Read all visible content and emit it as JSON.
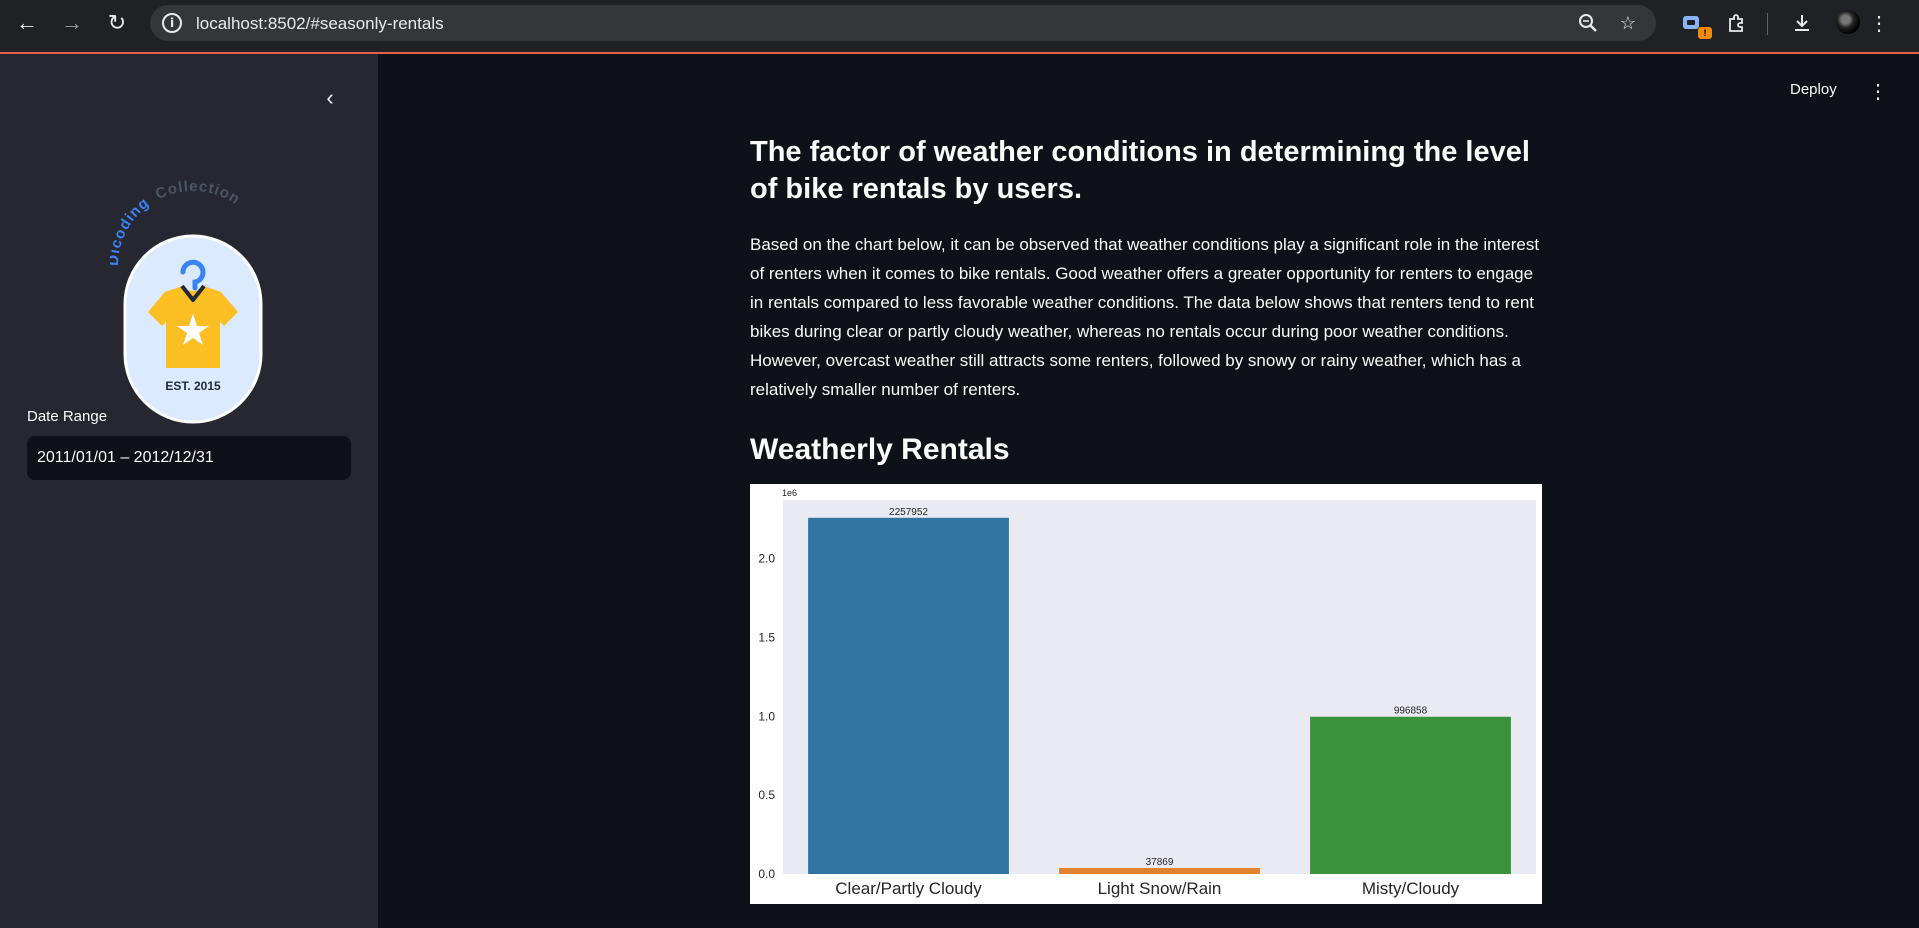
{
  "browser": {
    "url": "localhost:8502/#seasonly-rentals",
    "extension_badge": "!"
  },
  "sidebar": {
    "logo": {
      "arc_text_primary": "Dicoding",
      "arc_text_secondary": "Collection",
      "badge_text": "EST. 2015",
      "colors": {
        "shirt": "#fbbf24",
        "hanger": "#3b82f6",
        "badge_bg": "#dbeafe"
      }
    },
    "date_range_label": "Date Range",
    "date_range_value": "2011/01/01 – 2012/12/31"
  },
  "header": {
    "deploy_label": "Deploy"
  },
  "main": {
    "title": "The factor of weather conditions in determining the level of bike rentals by users.",
    "paragraph": "Based on the chart below, it can be observed that weather conditions play a significant role in the interest of renters when it comes to bike rentals. Good weather offers a greater opportunity for renters to engage in rentals compared to less favorable weather conditions. The data below shows that renters tend to rent bikes during clear or partly cloudy weather, whereas no rentals occur during poor weather conditions. However, overcast weather still attracts some renters, followed by snowy or rainy weather, which has a relatively smaller number of renters.",
    "subheader": "Weatherly Rentals"
  },
  "chart_data": {
    "type": "bar",
    "categories": [
      "Clear/Partly Cloudy",
      "Light Snow/Rain",
      "Misty/Cloudy"
    ],
    "values": [
      2257952,
      37869,
      996858
    ],
    "data_labels": [
      "2257952",
      "37869",
      "996858"
    ],
    "colors": [
      "#3274a1",
      "#e1812c",
      "#3a923a"
    ],
    "ylim": [
      0,
      2370850
    ],
    "yticks": [
      0,
      500000,
      1000000,
      1500000,
      2000000
    ],
    "ytick_labels": [
      "0.0",
      "0.5",
      "1.0",
      "1.5",
      "2.0"
    ],
    "offset_label": "1e6",
    "title": "",
    "xlabel": "",
    "ylabel": "",
    "grid": false,
    "plot_background": "#eaeaf2"
  }
}
